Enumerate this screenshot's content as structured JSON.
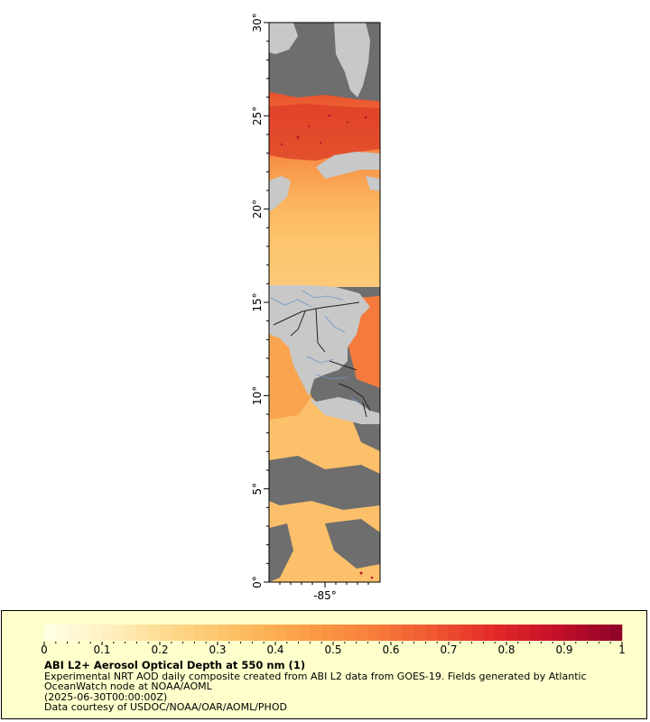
{
  "map": {
    "latitude_labels": [
      "30°",
      "25°",
      "20°",
      "15°",
      "10°",
      "5°",
      "0°"
    ],
    "longitude_labels": [
      "-85°"
    ],
    "lat_range": [
      0,
      30
    ],
    "colors": {
      "missing_data": "#6e6e6e",
      "land": "#c8c8c8",
      "rivers": "#6f97c9",
      "borders": "#222222"
    }
  },
  "legend": {
    "title": "ABI L2+ Aerosol Optical Depth at 550 nm (1)",
    "description": "Experimental NRT AOD daily composite created from ABI L2 data from GOES-19. Fields generated by Atlantic OceanWatch node at NOAA/AOML",
    "timestamp": "(2025-06-30T00:00:00Z)",
    "credit": "Data courtesy of USDOC/NOAA/OAR/AOML/PHOD",
    "colorbar_labels": [
      "0",
      "0.1",
      "0.2",
      "0.3",
      "0.4",
      "0.5",
      "0.6",
      "0.7",
      "0.8",
      "0.9",
      "1"
    ],
    "colorbar_range": [
      0,
      1
    ],
    "colormap_stops": [
      "#ffffe8",
      "#fff0c0",
      "#fed88a",
      "#fdbf63",
      "#fca048",
      "#f8823c",
      "#f05a32",
      "#e32a28",
      "#c4102a",
      "#8c0328"
    ]
  }
}
